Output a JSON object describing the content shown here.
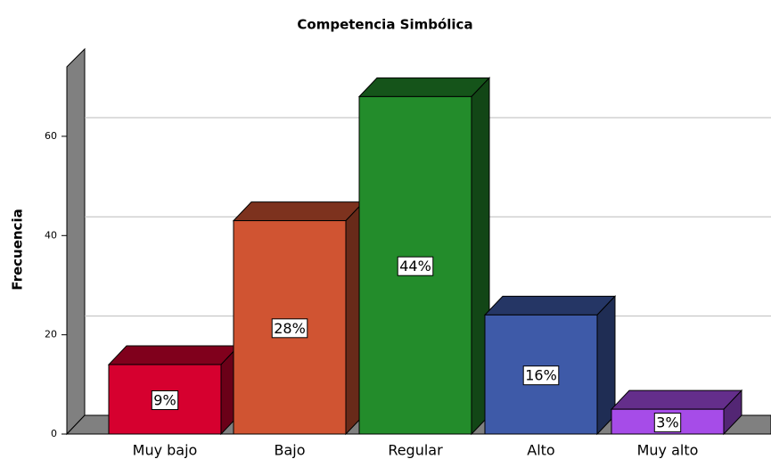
{
  "chart_data": {
    "type": "bar3d",
    "title": "Competencia Simbólica",
    "y_label": "Frecuencia",
    "categories": [
      "Muy bajo",
      "Bajo",
      "Regular",
      "Alto",
      "Muy alto"
    ],
    "values": [
      14,
      43,
      68,
      24,
      5
    ],
    "value_labels": [
      "9%",
      "28%",
      "44%",
      "16%",
      "3%"
    ],
    "colors": [
      "#d6002f",
      "#d05432",
      "#238c2b",
      "#3e5aa8",
      "#a64ce8"
    ],
    "ylim": [
      0,
      74
    ],
    "yticks": [
      0,
      20,
      40,
      60
    ],
    "grid": true
  }
}
